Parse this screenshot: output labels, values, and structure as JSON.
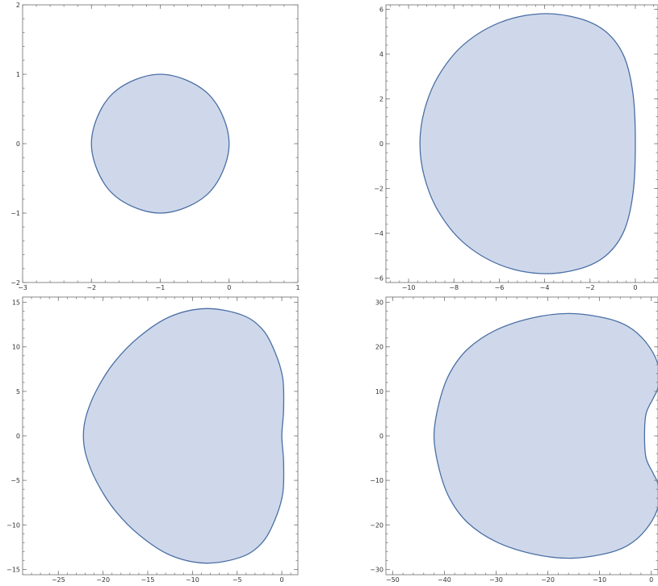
{
  "colors": {
    "region_fill": "#cfd8ea",
    "region_stroke": "#4a6fa5",
    "frame": "#8a8a8a",
    "tick_label": "#333333"
  },
  "chart_data": [
    {
      "type": "area",
      "title": "",
      "xlabel": "",
      "ylabel": "",
      "xlim": [
        -3,
        1
      ],
      "ylim": [
        -2,
        2
      ],
      "grid": false,
      "x_ticks": [
        -3,
        -2,
        -1,
        0,
        1
      ],
      "x_tick_labels": [
        "−3",
        "−2",
        "−1",
        "0",
        "1"
      ],
      "y_ticks": [
        -2,
        -1,
        0,
        1,
        2
      ],
      "y_tick_labels": [
        "−2",
        "−1",
        "0",
        "1",
        "2"
      ],
      "region": {
        "x": [
          0,
          -0.293,
          -1,
          -1.707,
          -2,
          -1.707,
          -1,
          -0.293,
          0
        ],
        "y": [
          0,
          0.707,
          1,
          0.707,
          0,
          -0.707,
          -1,
          -0.707,
          0
        ]
      }
    },
    {
      "type": "area",
      "title": "",
      "xlabel": "",
      "ylabel": "",
      "xlim": [
        -11,
        1
      ],
      "ylim": [
        -6.2,
        6.2
      ],
      "grid": false,
      "x_ticks": [
        -10,
        -8,
        -6,
        -4,
        -2,
        0
      ],
      "x_tick_labels": [
        "−10",
        "−8",
        "−6",
        "−4",
        "−2",
        "0"
      ],
      "y_ticks": [
        -6,
        -4,
        -2,
        0,
        2,
        4,
        6
      ],
      "y_tick_labels": [
        "−6",
        "−4",
        "−2",
        "0",
        "2",
        "4",
        "6"
      ],
      "region": {
        "x": [
          0,
          -0.1,
          -0.5,
          -1.3,
          -2.5,
          -4.2,
          -6,
          -7.6,
          -8.7,
          -9.3,
          -9.5,
          -9.3,
          -8.7,
          -7.6,
          -6,
          -4.2,
          -2.5,
          -1.3,
          -0.5,
          -0.1,
          0
        ],
        "y": [
          0,
          2.2,
          3.9,
          5.0,
          5.6,
          5.8,
          5.4,
          4.4,
          3.0,
          1.5,
          0,
          -1.5,
          -3.0,
          -4.4,
          -5.4,
          -5.8,
          -5.6,
          -5.0,
          -3.9,
          -2.2,
          0
        ]
      }
    },
    {
      "type": "area",
      "title": "",
      "xlabel": "",
      "ylabel": "",
      "xlim": [
        -29,
        1.8
      ],
      "ylim": [
        -15.6,
        15.6
      ],
      "grid": false,
      "x_ticks": [
        -25,
        -20,
        -15,
        -10,
        -5,
        0
      ],
      "x_tick_labels": [
        "−25",
        "−20",
        "−15",
        "−10",
        "−5",
        "0"
      ],
      "y_ticks": [
        -15,
        -10,
        -5,
        0,
        5,
        10,
        15
      ],
      "y_tick_labels": [
        "−15",
        "−10",
        "−5",
        "0",
        "5",
        "10",
        "15"
      ],
      "region": {
        "x": [
          0,
          0.2,
          0.1,
          -0.8,
          -2.2,
          -4.5,
          -8.5,
          -12.5,
          -16,
          -18.8,
          -20.8,
          -21.9,
          -22.2,
          -21.9,
          -20.8,
          -18.8,
          -16,
          -12.5,
          -8.5,
          -4.5,
          -2.2,
          -0.8,
          0.1,
          0.2,
          0
        ],
        "y": [
          0,
          3,
          6.5,
          9.5,
          12,
          13.6,
          14.3,
          13.4,
          11.1,
          8.2,
          5,
          2.2,
          0,
          -2.2,
          -5,
          -8.2,
          -11.1,
          -13.4,
          -14.3,
          -13.6,
          -12,
          -9.5,
          -6.5,
          -3,
          0
        ]
      }
    },
    {
      "type": "area",
      "title": "",
      "xlabel": "",
      "ylabel": "",
      "xlim": [
        -51.3,
        1.3
      ],
      "ylim": [
        -31.2,
        31.2
      ],
      "grid": false,
      "x_ticks": [
        -50,
        -40,
        -30,
        -20,
        -10,
        0
      ],
      "x_tick_labels": [
        "−50",
        "−40",
        "−30",
        "−20",
        "−10",
        "0"
      ],
      "y_ticks": [
        -30,
        -20,
        -10,
        0,
        10,
        20,
        30
      ],
      "y_tick_labels": [
        "−30",
        "−20",
        "−10",
        "0",
        "10",
        "20",
        "30"
      ],
      "region": {
        "x": [
          -1.3,
          -1.0,
          0.4,
          1.3,
          1.3,
          -1,
          -4.5,
          -9,
          -16,
          -23,
          -30,
          -35.5,
          -39,
          -41,
          -42,
          -41,
          -39,
          -35.5,
          -30,
          -23,
          -16,
          -9,
          -4.5,
          -1,
          1.3,
          1.3,
          0.4,
          -1.0,
          -1.3
        ],
        "y": [
          0,
          5,
          8.5,
          11,
          16,
          21,
          24.6,
          26.5,
          27.5,
          26.5,
          23.8,
          19.5,
          14,
          7.5,
          0,
          -7.5,
          -14,
          -19.5,
          -23.8,
          -26.5,
          -27.5,
          -26.5,
          -24.6,
          -21,
          -16,
          -11,
          -8.5,
          -5,
          0
        ]
      }
    }
  ]
}
